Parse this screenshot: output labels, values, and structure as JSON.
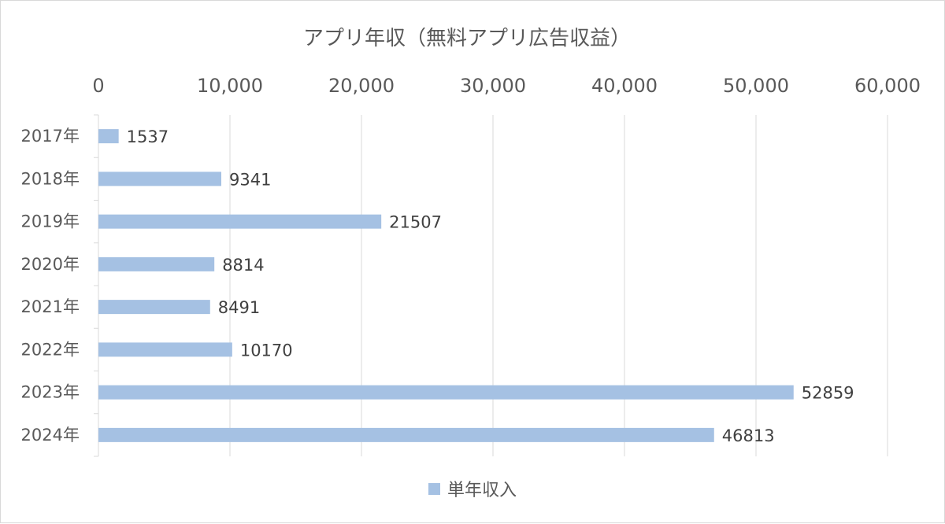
{
  "chart_data": {
    "type": "bar",
    "orientation": "horizontal",
    "title": "アプリ年収（無料アプリ広告収益）",
    "categories": [
      "2017年",
      "2018年",
      "2019年",
      "2020年",
      "2021年",
      "2022年",
      "2023年",
      "2024年"
    ],
    "series": [
      {
        "name": "単年収入",
        "values": [
          1537,
          9341,
          21507,
          8814,
          8491,
          10170,
          52859,
          46813
        ],
        "color": "#a5c1e3"
      }
    ],
    "xlim": [
      0,
      60000
    ],
    "x_ticks": [
      0,
      10000,
      20000,
      30000,
      40000,
      50000,
      60000
    ],
    "x_tick_labels": [
      "0",
      "10,000",
      "20,000",
      "30,000",
      "40,000",
      "50,000",
      "60,000"
    ],
    "value_axis_position": "top",
    "grid": true,
    "data_labels": true,
    "legend": "bottom"
  }
}
